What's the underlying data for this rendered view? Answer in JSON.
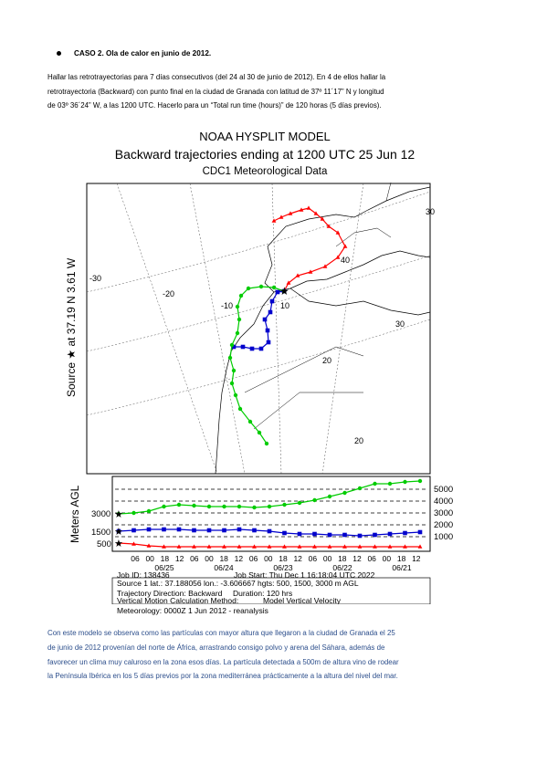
{
  "bullet": {
    "heading": "CASO 2. Ola de calor en junio de 2012."
  },
  "intro": {
    "lines": [
      "Hallar las retrotrayectorias para 7 días consecutivos (del 24 al 30 de junio de 2012). En 4 de ellos hallar la",
      "retrotrayectoria (Backward) con punto final en la ciudad de Granada con latitud de 37º 11´17” N y longitud",
      "de 03º 36´24” W, a las 1200 UTC. Hacerlo para un “Total run time (hours)” de 120 horas (5 días previos)."
    ]
  },
  "figure": {
    "title1": "NOAA HYSPLIT MODEL",
    "title2": "Backward trajectories ending at 1200 UTC 25 Jun 12",
    "title3": "CDC1 Meteorological Data",
    "source_label": "Source ★ at   37.19 N    3.61 W",
    "map_labels": [
      "-30",
      "-20",
      "-10",
      "40",
      "30",
      "20",
      "10",
      "20",
      "30"
    ],
    "ylabel": "Meters AGL",
    "left_ticks": [
      "3000",
      "1500",
      "500"
    ],
    "right_ticks": [
      "5000",
      "4000",
      "3000",
      "2000",
      "1000"
    ],
    "time_ticks": [
      "06",
      "00",
      "18",
      "12",
      "06",
      "00",
      "18",
      "12",
      "06",
      "00",
      "18",
      "12",
      "06",
      "00",
      "18",
      "12",
      "06",
      "00",
      "18",
      "12"
    ],
    "date_ticks": [
      "06/25",
      "06/24",
      "06/23",
      "06/22",
      "06/21"
    ],
    "info": {
      "job_id": "Job ID: 138436",
      "job_start": "Job Start: Thu Dec  1 16:18:04 UTC 2022",
      "source_line": "Source 1 lat.: 37.188056  lon.: -3.606667  hgts: 500, 1500, 3000 m AGL",
      "direction": "Trajectory Direction: Backward",
      "duration": "Duration: 120 hrs",
      "vertical": "Vertical Motion Calculation Method:",
      "vertical_val": "Model Vertical Velocity",
      "meteorology": "Meteorology: 0000Z  1 Jun 2012 - reanalysis"
    },
    "colors": {
      "red": "#ff0000",
      "blue": "#0000cc",
      "green": "#00cc00"
    }
  },
  "conclusion": {
    "lines": [
      "Con este modelo se observa como las partículas con mayor altura que llegaron a la ciudad de Granada el 25",
      "de junio de 2012 provenían del norte de África, arrastrando consigo polvo y arena del Sáhara, además de",
      "favorecer un clima muy caluroso en la zona esos días. La partícula detectada a 500m de altura vino de rodear",
      "la Península Ibérica en los 5 días previos por la zona mediterránea prácticamente a la altura del nivel del mar."
    ]
  }
}
